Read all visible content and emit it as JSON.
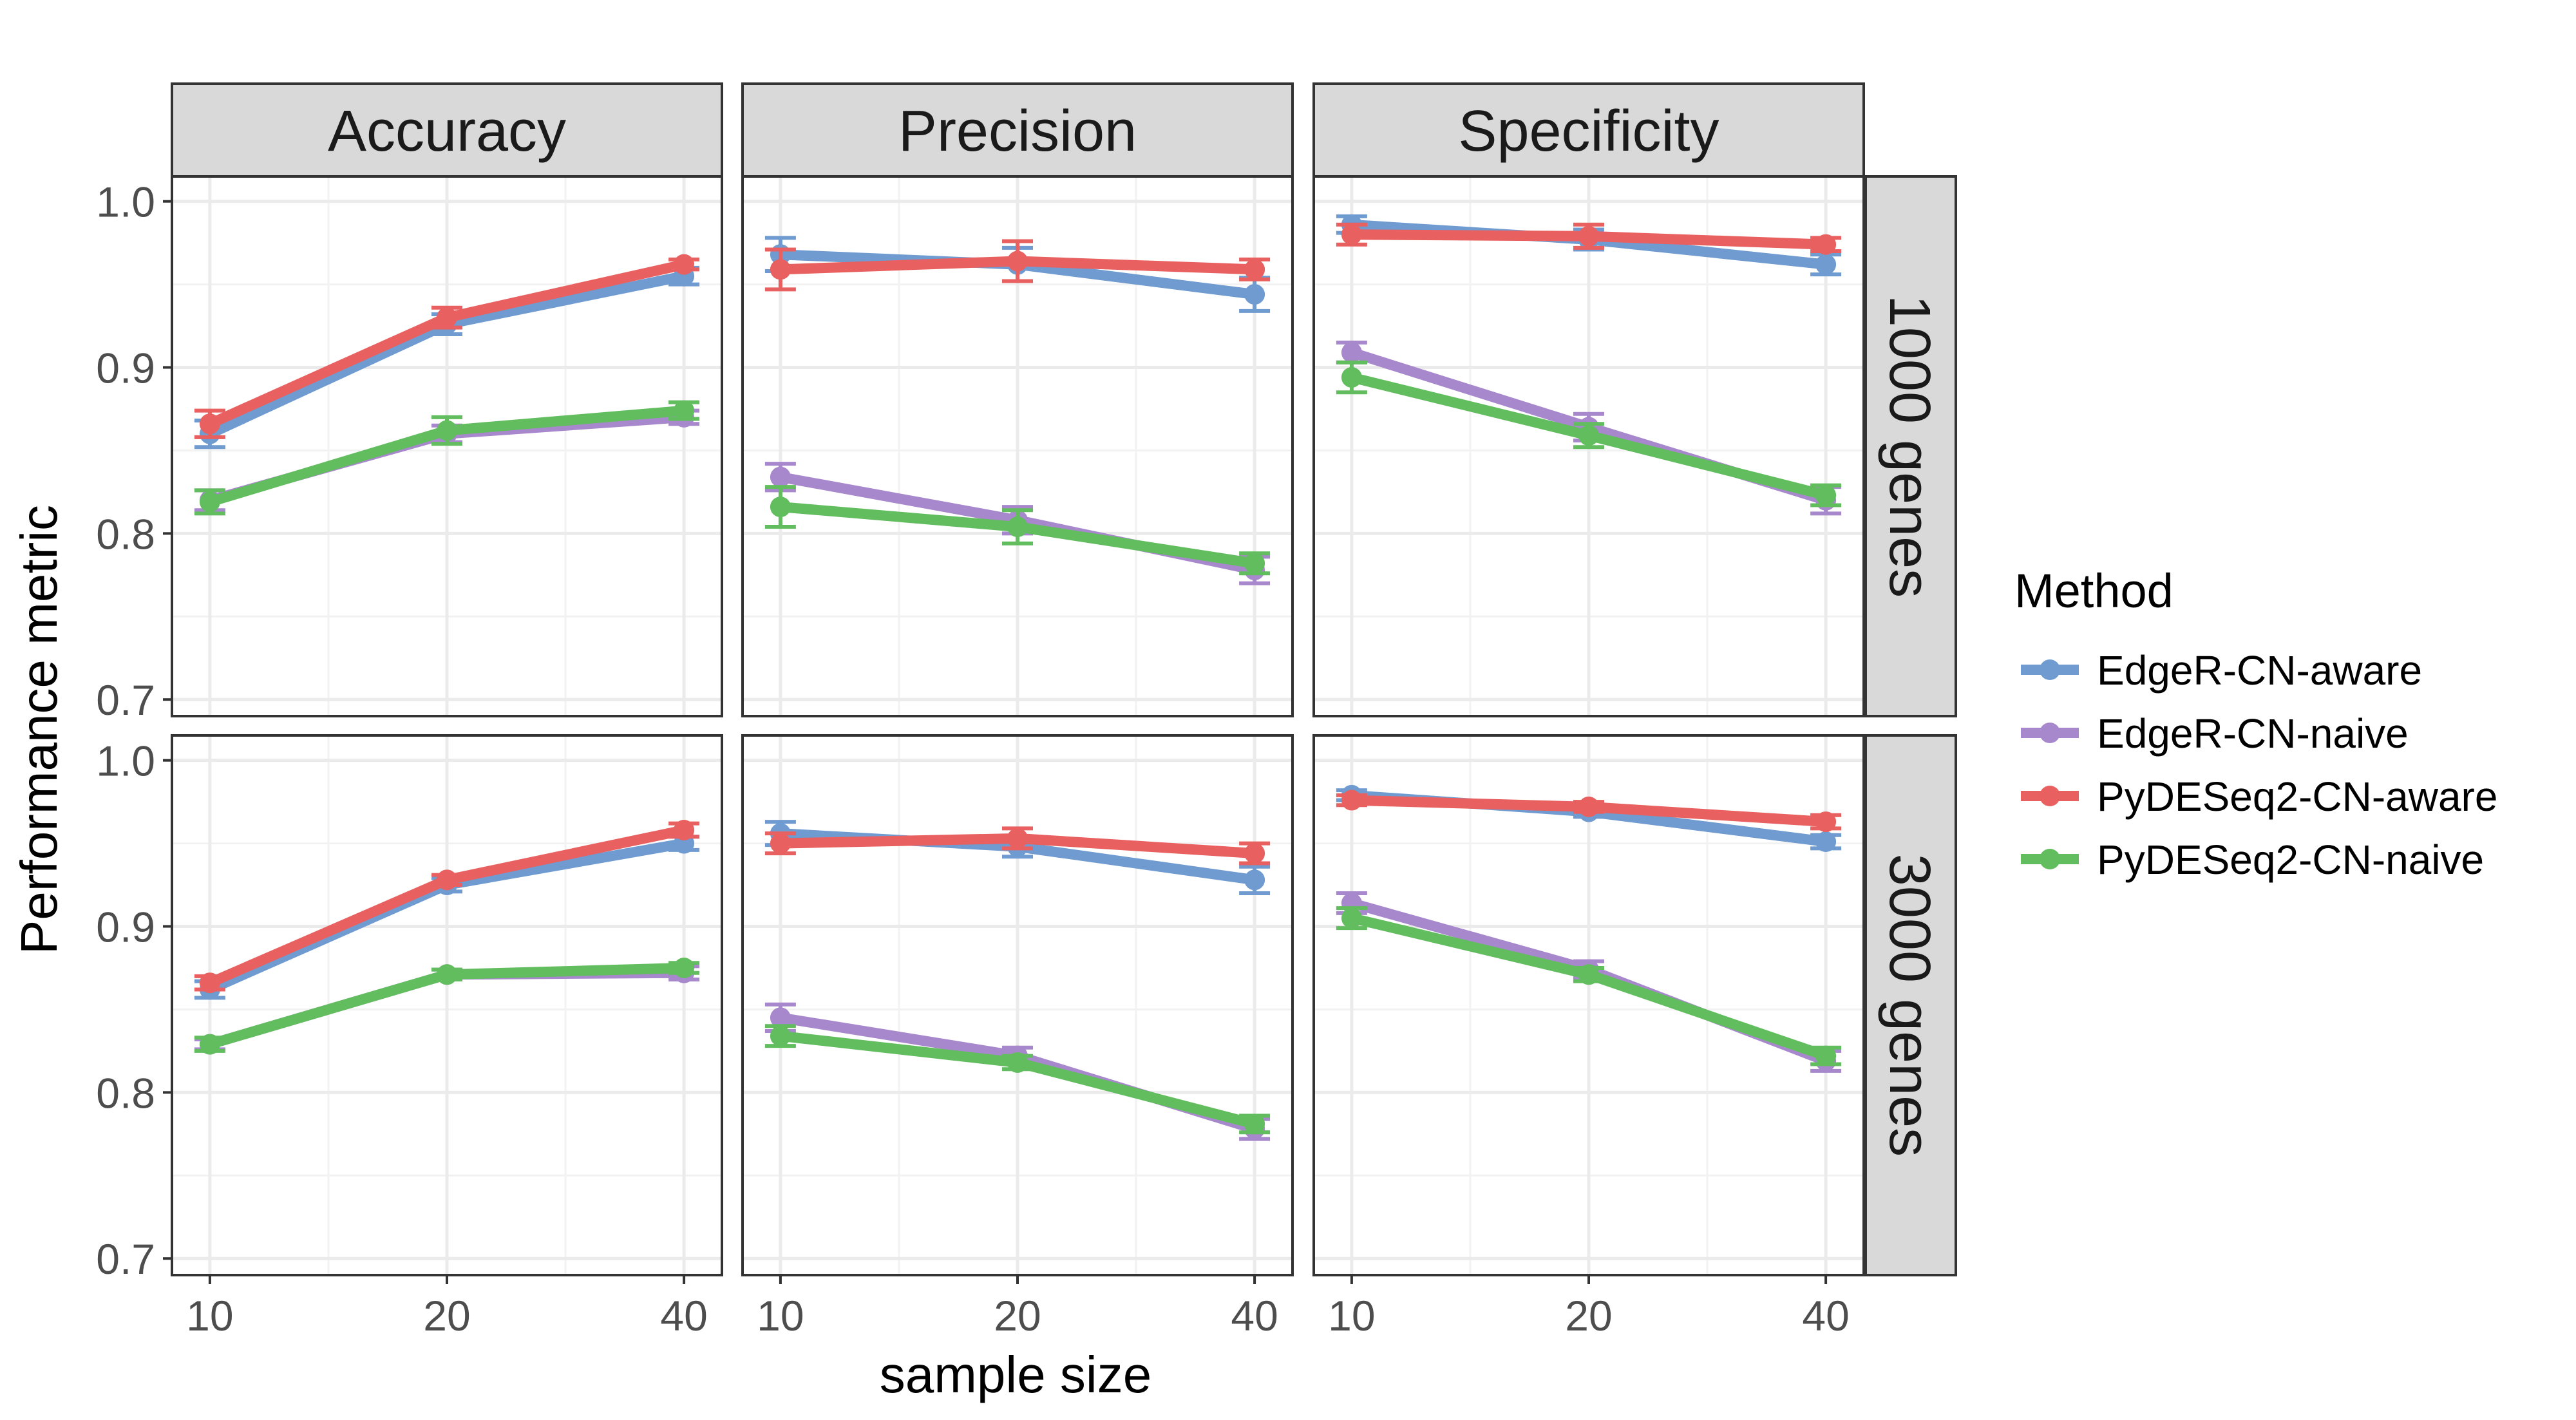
{
  "chart_data": {
    "type": "line",
    "xlabel": "sample size",
    "ylabel": "Performance metric",
    "x": [
      10,
      20,
      40
    ],
    "x_ticks": [
      "10",
      "20",
      "40"
    ],
    "ylim": [
      0.69,
      1.015
    ],
    "y_ticks": [
      0.7,
      0.8,
      0.9,
      1.0
    ],
    "y_tick_labels": [
      "0.7",
      "0.8",
      "0.9",
      "1.0"
    ],
    "grid": true,
    "legend": {
      "title": "Method",
      "position": "right",
      "entries": [
        "EdgeR-CN-aware",
        "EdgeR-CN-naive",
        "PyDESeq2-CN-aware",
        "PyDESeq2-CN-naive"
      ]
    },
    "colors": {
      "EdgeR-CN-aware": "#6f9bd1",
      "EdgeR-CN-naive": "#a888cc",
      "PyDESeq2-CN-aware": "#e8605f",
      "PyDESeq2-CN-naive": "#62bd5e"
    },
    "col_facets": [
      "Accuracy",
      "Precision",
      "Specificity"
    ],
    "row_facets": [
      "1000 genes",
      "3000 genes"
    ],
    "panels": [
      {
        "metric": "Accuracy",
        "genes": "1000 genes",
        "series": [
          {
            "name": "EdgeR-CN-aware",
            "values": [
              0.86,
              0.926,
              0.955
            ],
            "errors": [
              0.008,
              0.006,
              0.005
            ]
          },
          {
            "name": "EdgeR-CN-naive",
            "values": [
              0.82,
              0.86,
              0.87
            ],
            "errors": [
              0.006,
              0.005,
              0.004
            ]
          },
          {
            "name": "PyDESeq2-CN-aware",
            "values": [
              0.866,
              0.93,
              0.962
            ],
            "errors": [
              0.008,
              0.006,
              0.003
            ]
          },
          {
            "name": "PyDESeq2-CN-naive",
            "values": [
              0.819,
              0.862,
              0.874
            ],
            "errors": [
              0.007,
              0.008,
              0.005
            ]
          }
        ]
      },
      {
        "metric": "Precision",
        "genes": "1000 genes",
        "series": [
          {
            "name": "EdgeR-CN-aware",
            "values": [
              0.968,
              0.962,
              0.944
            ],
            "errors": [
              0.01,
              0.01,
              0.01
            ]
          },
          {
            "name": "EdgeR-CN-naive",
            "values": [
              0.834,
              0.808,
              0.778
            ],
            "errors": [
              0.008,
              0.008,
              0.008
            ]
          },
          {
            "name": "PyDESeq2-CN-aware",
            "values": [
              0.959,
              0.964,
              0.959
            ],
            "errors": [
              0.012,
              0.012,
              0.006
            ]
          },
          {
            "name": "PyDESeq2-CN-naive",
            "values": [
              0.816,
              0.804,
              0.782
            ],
            "errors": [
              0.012,
              0.01,
              0.006
            ]
          }
        ]
      },
      {
        "metric": "Specificity",
        "genes": "1000 genes",
        "series": [
          {
            "name": "EdgeR-CN-aware",
            "values": [
              0.986,
              0.977,
              0.962
            ],
            "errors": [
              0.005,
              0.006,
              0.006
            ]
          },
          {
            "name": "EdgeR-CN-naive",
            "values": [
              0.909,
              0.864,
              0.82
            ],
            "errors": [
              0.006,
              0.008,
              0.008
            ]
          },
          {
            "name": "PyDESeq2-CN-aware",
            "values": [
              0.98,
              0.979,
              0.974
            ],
            "errors": [
              0.006,
              0.007,
              0.004
            ]
          },
          {
            "name": "PyDESeq2-CN-naive",
            "values": [
              0.894,
              0.859,
              0.823
            ],
            "errors": [
              0.009,
              0.007,
              0.006
            ]
          }
        ]
      },
      {
        "metric": "Accuracy",
        "genes": "3000 genes",
        "series": [
          {
            "name": "EdgeR-CN-aware",
            "values": [
              0.862,
              0.925,
              0.95
            ],
            "errors": [
              0.005,
              0.004,
              0.004
            ]
          },
          {
            "name": "EdgeR-CN-naive",
            "values": [
              0.829,
              0.871,
              0.872
            ],
            "errors": [
              0.003,
              0.003,
              0.004
            ]
          },
          {
            "name": "PyDESeq2-CN-aware",
            "values": [
              0.866,
              0.928,
              0.958
            ],
            "errors": [
              0.004,
              0.003,
              0.004
            ]
          },
          {
            "name": "PyDESeq2-CN-naive",
            "values": [
              0.829,
              0.871,
              0.875
            ],
            "errors": [
              0.004,
              0.003,
              0.003
            ]
          }
        ]
      },
      {
        "metric": "Precision",
        "genes": "3000 genes",
        "series": [
          {
            "name": "EdgeR-CN-aware",
            "values": [
              0.956,
              0.948,
              0.928
            ],
            "errors": [
              0.007,
              0.006,
              0.008
            ]
          },
          {
            "name": "EdgeR-CN-naive",
            "values": [
              0.845,
              0.822,
              0.778
            ],
            "errors": [
              0.008,
              0.005,
              0.006
            ]
          },
          {
            "name": "PyDESeq2-CN-aware",
            "values": [
              0.95,
              0.953,
              0.944
            ],
            "errors": [
              0.006,
              0.006,
              0.006
            ]
          },
          {
            "name": "PyDESeq2-CN-naive",
            "values": [
              0.834,
              0.818,
              0.781
            ],
            "errors": [
              0.006,
              0.004,
              0.005
            ]
          }
        ]
      },
      {
        "metric": "Specificity",
        "genes": "3000 genes",
        "series": [
          {
            "name": "EdgeR-CN-aware",
            "values": [
              0.979,
              0.969,
              0.951
            ],
            "errors": [
              0.003,
              0.003,
              0.004
            ]
          },
          {
            "name": "EdgeR-CN-naive",
            "values": [
              0.914,
              0.874,
              0.819
            ],
            "errors": [
              0.006,
              0.005,
              0.006
            ]
          },
          {
            "name": "PyDESeq2-CN-aware",
            "values": [
              0.976,
              0.972,
              0.963
            ],
            "errors": [
              0.003,
              0.003,
              0.004
            ]
          },
          {
            "name": "PyDESeq2-CN-naive",
            "values": [
              0.905,
              0.871,
              0.822
            ],
            "errors": [
              0.006,
              0.004,
              0.005
            ]
          }
        ]
      }
    ]
  }
}
